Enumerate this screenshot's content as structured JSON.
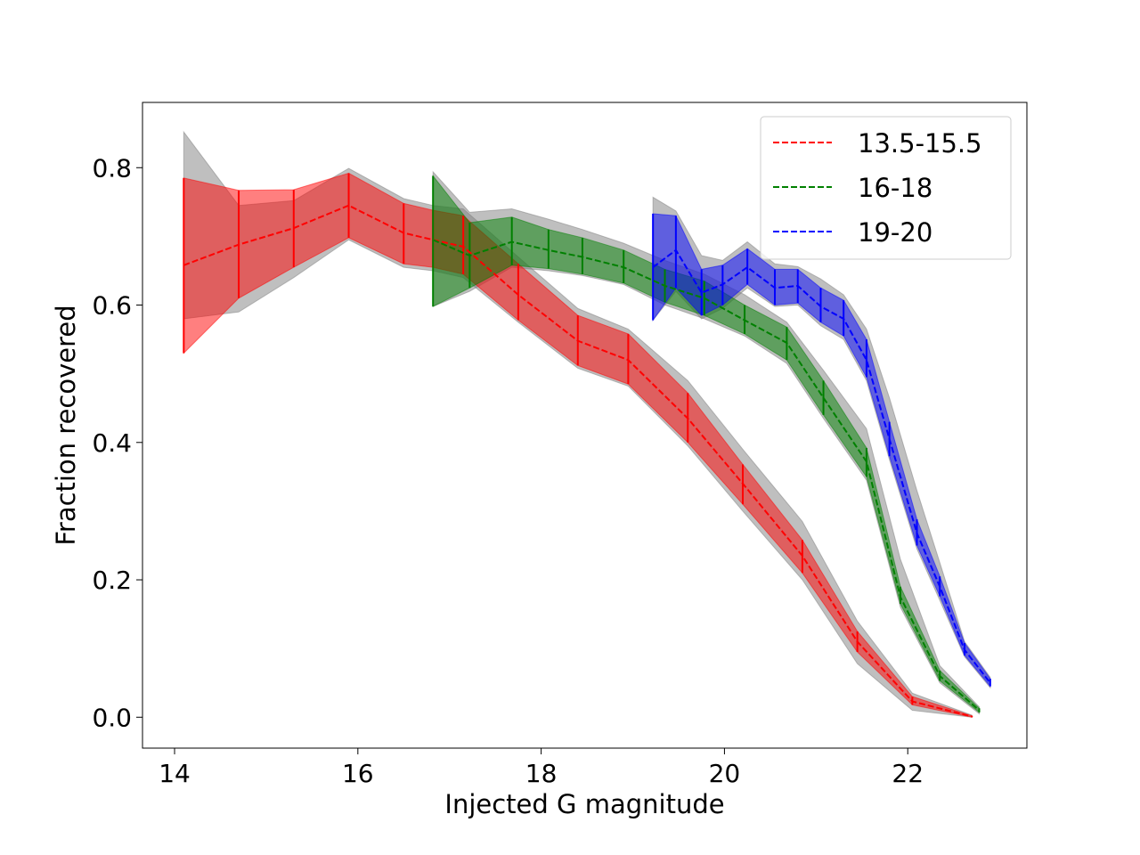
{
  "chart_data": {
    "type": "line",
    "title": "",
    "xlabel": "Injected G magnitude",
    "ylabel": "Fraction recovered",
    "xlim": [
      13.65,
      23.3
    ],
    "ylim": [
      -0.045,
      0.895
    ],
    "xticks": [
      14,
      16,
      18,
      20,
      22
    ],
    "xtick_labels": [
      "14",
      "16",
      "18",
      "20",
      "22"
    ],
    "yticks": [
      0.0,
      0.2,
      0.4,
      0.6,
      0.8
    ],
    "ytick_labels": [
      "0.0",
      "0.2",
      "0.4",
      "0.6",
      "0.8"
    ],
    "legend_position": "top-right",
    "grid": false,
    "series": [
      {
        "name": "13.5-15.5",
        "color": "#ff0000",
        "x": [
          14.1,
          14.7,
          15.3,
          15.9,
          16.5,
          16.82,
          17.15,
          17.75,
          18.4,
          18.95,
          19.6,
          20.2,
          20.85,
          21.45,
          22.05,
          22.7
        ],
        "y": [
          0.658,
          0.688,
          0.712,
          0.745,
          0.705,
          0.695,
          0.685,
          0.615,
          0.548,
          0.52,
          0.435,
          0.34,
          0.235,
          0.11,
          0.023,
          0.001
        ],
        "lower": [
          0.53,
          0.61,
          0.655,
          0.698,
          0.66,
          0.655,
          0.645,
          0.578,
          0.512,
          0.485,
          0.4,
          0.31,
          0.21,
          0.095,
          0.018,
          0.0
        ],
        "upper": [
          0.785,
          0.767,
          0.768,
          0.792,
          0.748,
          0.738,
          0.73,
          0.66,
          0.585,
          0.558,
          0.472,
          0.368,
          0.258,
          0.125,
          0.03,
          0.002
        ],
        "outer_lower": [
          0.58,
          0.59,
          0.64,
          0.695,
          0.655,
          0.65,
          0.64,
          0.575,
          0.508,
          0.482,
          0.395,
          0.3,
          0.2,
          0.078,
          0.01,
          0.0
        ],
        "outer_upper": [
          0.852,
          0.745,
          0.752,
          0.799,
          0.755,
          0.745,
          0.74,
          0.67,
          0.595,
          0.565,
          0.49,
          0.39,
          0.285,
          0.14,
          0.035,
          0.003
        ]
      },
      {
        "name": "16-18",
        "color": "#008000",
        "x": [
          16.82,
          17.22,
          17.68,
          18.08,
          18.45,
          18.9,
          19.35,
          19.78,
          20.22,
          20.68,
          21.08,
          21.55,
          21.92,
          22.35,
          22.78
        ],
        "y": [
          0.695,
          0.672,
          0.692,
          0.68,
          0.67,
          0.655,
          0.628,
          0.61,
          0.578,
          0.545,
          0.465,
          0.372,
          0.175,
          0.06,
          0.01
        ],
        "lower": [
          0.598,
          0.625,
          0.658,
          0.653,
          0.645,
          0.632,
          0.604,
          0.585,
          0.558,
          0.52,
          0.44,
          0.35,
          0.165,
          0.053,
          0.007
        ],
        "upper": [
          0.788,
          0.72,
          0.728,
          0.71,
          0.698,
          0.68,
          0.652,
          0.635,
          0.6,
          0.568,
          0.49,
          0.392,
          0.19,
          0.068,
          0.013
        ],
        "outer_lower": [
          0.598,
          0.62,
          0.655,
          0.65,
          0.643,
          0.63,
          0.6,
          0.58,
          0.555,
          0.515,
          0.435,
          0.345,
          0.16,
          0.05,
          0.005
        ],
        "outer_upper": [
          0.794,
          0.735,
          0.74,
          0.725,
          0.71,
          0.69,
          0.665,
          0.645,
          0.615,
          0.575,
          0.505,
          0.42,
          0.23,
          0.075,
          0.015
        ]
      },
      {
        "name": "19-20",
        "color": "#0000ff",
        "x": [
          19.22,
          19.47,
          19.75,
          19.98,
          20.25,
          20.55,
          20.8,
          21.05,
          21.3,
          21.55,
          21.8,
          22.1,
          22.35,
          22.62,
          22.9
        ],
        "y": [
          0.655,
          0.68,
          0.618,
          0.63,
          0.655,
          0.625,
          0.628,
          0.598,
          0.58,
          0.52,
          0.405,
          0.268,
          0.19,
          0.098,
          0.05
        ],
        "lower": [
          0.578,
          0.625,
          0.585,
          0.6,
          0.63,
          0.6,
          0.603,
          0.575,
          0.555,
          0.495,
          0.38,
          0.25,
          0.176,
          0.09,
          0.045
        ],
        "upper": [
          0.733,
          0.73,
          0.652,
          0.658,
          0.682,
          0.652,
          0.652,
          0.625,
          0.607,
          0.55,
          0.43,
          0.288,
          0.205,
          0.108,
          0.056
        ],
        "outer_lower": [
          0.578,
          0.62,
          0.58,
          0.595,
          0.625,
          0.598,
          0.6,
          0.57,
          0.55,
          0.49,
          0.375,
          0.245,
          0.17,
          0.088,
          0.043
        ],
        "outer_upper": [
          0.757,
          0.737,
          0.672,
          0.665,
          0.692,
          0.66,
          0.656,
          0.638,
          0.615,
          0.565,
          0.465,
          0.33,
          0.225,
          0.11,
          0.058
        ]
      }
    ]
  }
}
